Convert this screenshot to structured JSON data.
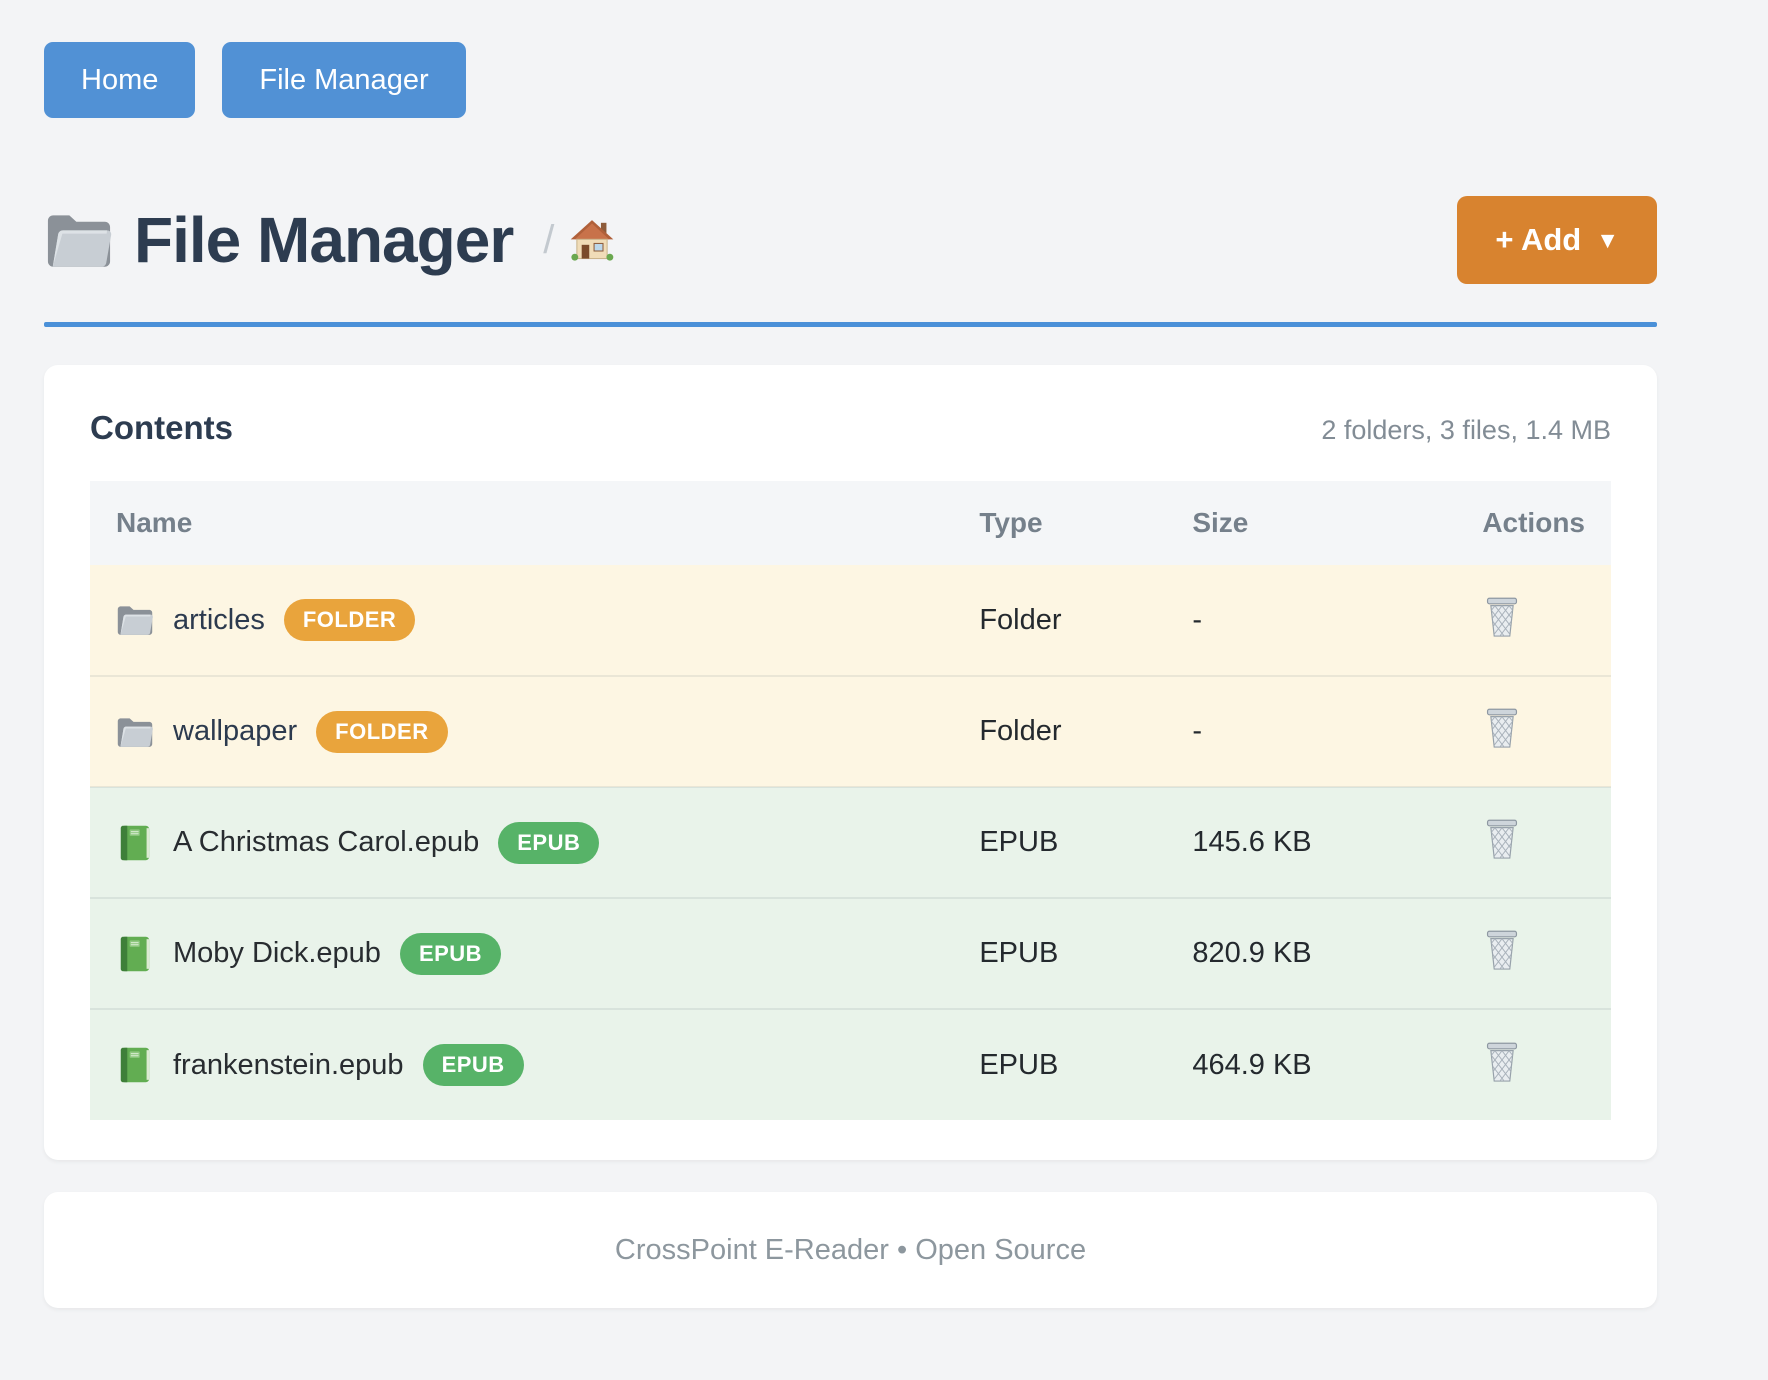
{
  "nav": {
    "buttons": [
      {
        "label": "Home"
      },
      {
        "label": "File Manager"
      }
    ]
  },
  "header": {
    "title": "File Manager",
    "breadcrumb_separator": "/",
    "add_button": {
      "label": "+ Add",
      "caret": "▼"
    }
  },
  "contents": {
    "heading": "Contents",
    "summary": "2 folders, 3 files, 1.4 MB",
    "columns": [
      "Name",
      "Type",
      "Size",
      "Actions"
    ],
    "rows": [
      {
        "name": "articles",
        "badge": "FOLDER",
        "kind": "folder",
        "type": "Folder",
        "size": "-"
      },
      {
        "name": "wallpaper",
        "badge": "FOLDER",
        "kind": "folder",
        "type": "Folder",
        "size": "-"
      },
      {
        "name": "A Christmas Carol.epub",
        "badge": "EPUB",
        "kind": "epub",
        "type": "EPUB",
        "size": "145.6 KB"
      },
      {
        "name": "Moby Dick.epub",
        "badge": "EPUB",
        "kind": "epub",
        "type": "EPUB",
        "size": "820.9 KB"
      },
      {
        "name": "frankenstein.epub",
        "badge": "EPUB",
        "kind": "epub",
        "type": "EPUB",
        "size": "464.9 KB"
      }
    ]
  },
  "footer": {
    "text": "CrossPoint E-Reader • Open Source"
  },
  "colors": {
    "accent_blue": "#4a90d8",
    "button_blue": "#5191d5",
    "add_orange": "#d8832f",
    "badge_folder_orange": "#e9a43c",
    "badge_epub_green": "#57b368",
    "row_folder_bg": "#fdf6e3",
    "row_epub_bg": "#e9f3ea",
    "title_text": "#2d3c50",
    "muted_text": "#828c95",
    "page_bg": "#f3f4f6"
  }
}
